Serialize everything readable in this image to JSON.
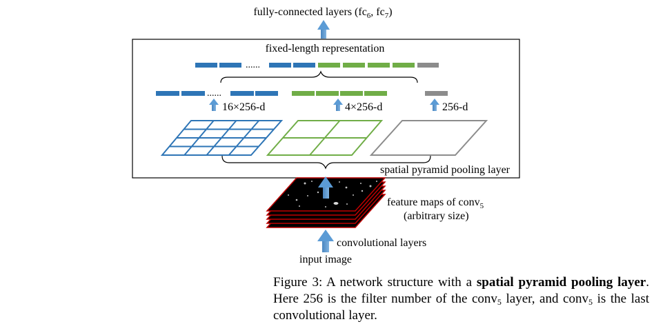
{
  "top_label": "fully-connected layers (fc",
  "top_label_sub1": "6",
  "top_label_mid": ", fc",
  "top_label_sub2": "7",
  "top_label_end": ")",
  "fixed_length_label": "fixed-length representation",
  "ellipsis": "......",
  "bin_labels": [
    "16×256-d",
    "4×256-d",
    "256-d"
  ],
  "spp_label": "spatial pyramid pooling layer",
  "feature_maps_label": "feature maps of conv",
  "feature_maps_sub": "5",
  "feature_maps_size": "(arbitrary size)",
  "conv_layers_label": "convolutional layers",
  "input_label": "input image",
  "caption": {
    "part1": "Figure 3: A network structure with a ",
    "bold": "spatial pyramid pooling layer",
    "part2": ". Here 256 is the filter number of the conv",
    "sub1": "5",
    "part3": " layer, and conv",
    "sub2": "5",
    "part4": " is the last convolutional layer."
  },
  "colors": {
    "blue": "#2e75b6",
    "green": "#70ad47",
    "gray": "#8c8c8c",
    "arrow": "#5b9bd5",
    "feature_border": "#c00000"
  }
}
